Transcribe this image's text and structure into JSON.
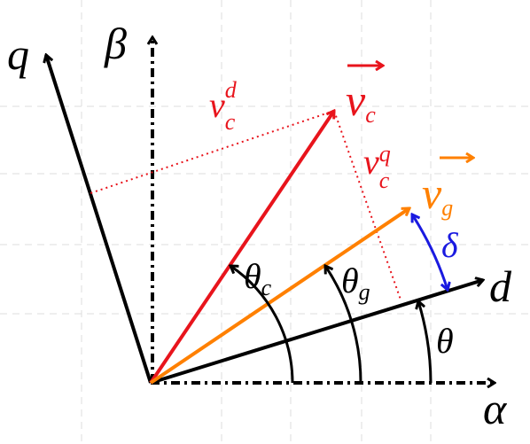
{
  "axes": {
    "q": "q",
    "beta": "β",
    "d": "d",
    "alpha": "α"
  },
  "vectors": {
    "vc": {
      "base": "v",
      "sub": "c"
    },
    "vg": {
      "base": "v",
      "sub": "g"
    }
  },
  "components": {
    "vcd": {
      "base": "v",
      "sub": "c",
      "sup": "d"
    },
    "vcq": {
      "base": "v",
      "sub": "c",
      "sup": "q"
    }
  },
  "angles": {
    "theta_c": {
      "base": "θ",
      "sub": "c"
    },
    "theta_g": {
      "base": "θ",
      "sub": "g"
    },
    "theta": "θ",
    "delta": "δ"
  }
}
